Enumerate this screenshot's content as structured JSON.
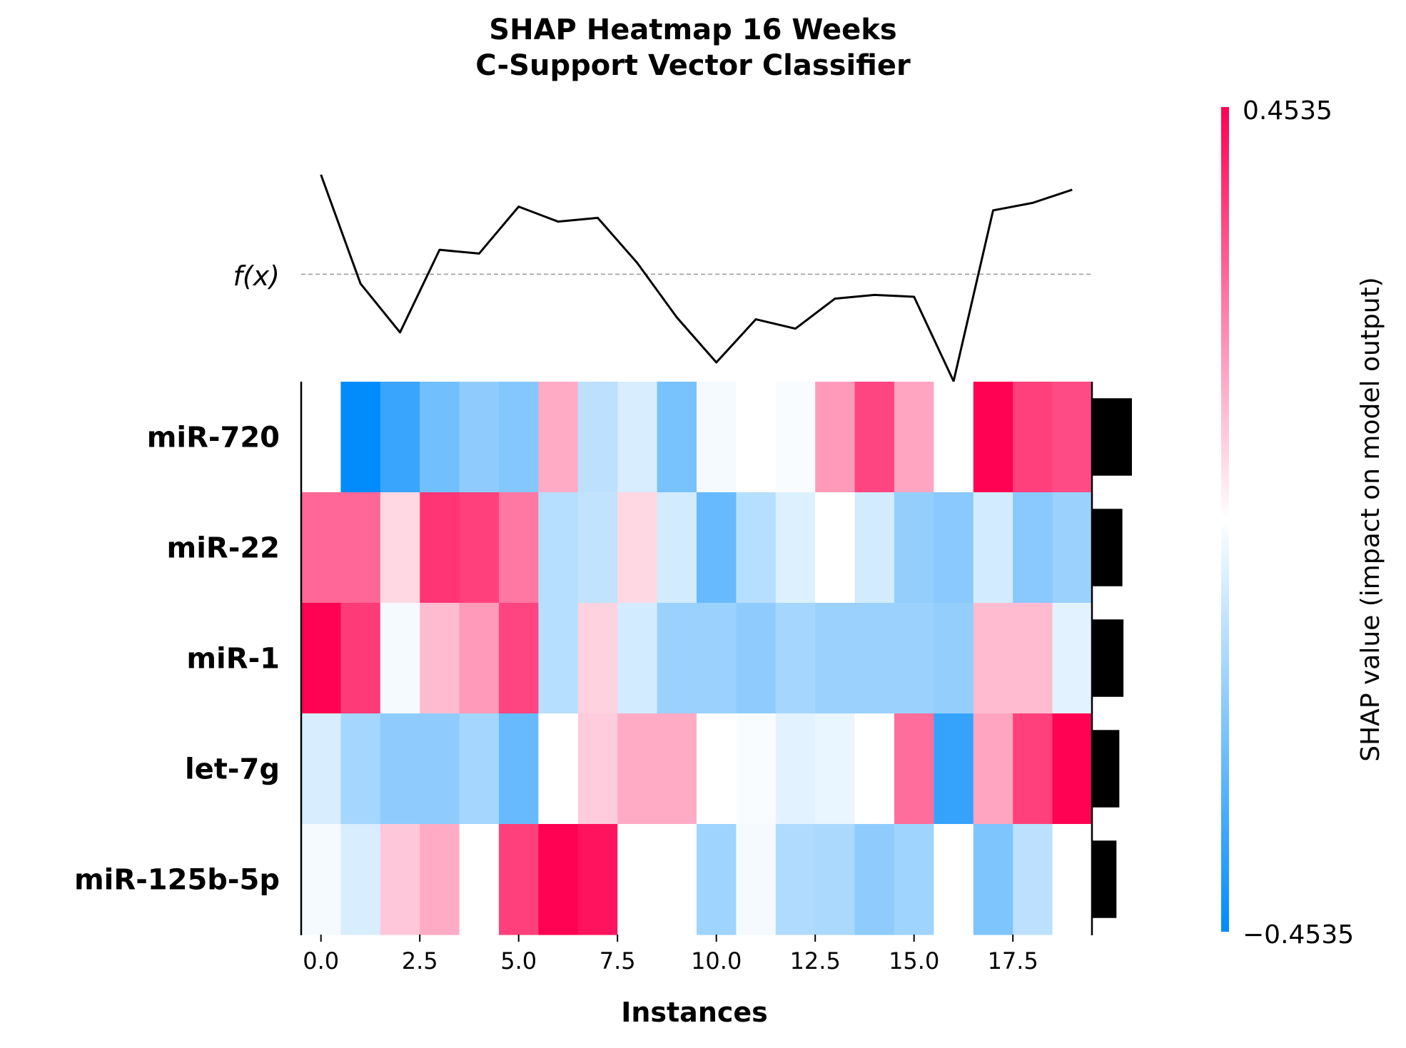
{
  "chart_data": {
    "type": "heatmap",
    "title": "SHAP Heatmap 16 Weeks\nC-Support Vector Classifier",
    "xlabel": "Instances",
    "fx_label": "f(x)",
    "features": [
      "miR-720",
      "miR-22",
      "miR-1",
      "let-7g",
      "miR-125b-5p"
    ],
    "instances": [
      0,
      1,
      2,
      3,
      4,
      5,
      6,
      7,
      8,
      9,
      10,
      11,
      12,
      13,
      14,
      15,
      16,
      17,
      18,
      19
    ],
    "x_ticks": [
      "0.0",
      "2.5",
      "5.0",
      "7.5",
      "10.0",
      "12.5",
      "15.0",
      "17.5"
    ],
    "x_tick_values": [
      0,
      2.5,
      5,
      7.5,
      10,
      12.5,
      15,
      17.5
    ],
    "xlim": [
      -0.5,
      19.5
    ],
    "shap_values": [
      [
        0.0,
        -0.45,
        -0.35,
        -0.25,
        -0.2,
        -0.22,
        0.15,
        -0.12,
        -0.07,
        -0.24,
        -0.02,
        0.0,
        -0.01,
        0.18,
        0.33,
        0.16,
        0.0,
        0.45,
        0.34,
        0.32
      ],
      [
        0.27,
        0.27,
        0.07,
        0.36,
        0.34,
        0.24,
        -0.13,
        -0.11,
        0.07,
        -0.08,
        -0.27,
        -0.13,
        -0.06,
        0.0,
        -0.08,
        -0.19,
        -0.21,
        -0.08,
        -0.21,
        -0.18
      ],
      [
        0.45,
        0.35,
        -0.02,
        0.12,
        0.18,
        0.33,
        -0.13,
        0.08,
        -0.08,
        -0.18,
        -0.18,
        -0.2,
        -0.16,
        -0.18,
        -0.18,
        -0.18,
        -0.19,
        0.12,
        0.12,
        -0.05
      ],
      [
        -0.07,
        -0.16,
        -0.2,
        -0.2,
        -0.16,
        -0.27,
        0.0,
        0.09,
        0.15,
        0.15,
        0.0,
        -0.01,
        -0.05,
        -0.04,
        0.0,
        0.26,
        -0.36,
        0.16,
        0.34,
        0.45
      ],
      [
        -0.02,
        -0.07,
        0.1,
        0.15,
        0.0,
        0.34,
        0.45,
        0.42,
        0.0,
        0.0,
        -0.17,
        -0.02,
        -0.14,
        -0.15,
        -0.2,
        -0.17,
        0.0,
        -0.23,
        -0.12,
        0.0
      ]
    ],
    "fx_values": [
      1.0,
      0.42,
      0.16,
      0.6,
      0.58,
      0.83,
      0.75,
      0.77,
      0.53,
      0.24,
      0.0,
      0.23,
      0.18,
      0.34,
      0.36,
      0.35,
      -0.1,
      0.81,
      0.85,
      0.92
    ],
    "fx_baseline": 0.47,
    "fx_range": [
      -0.11,
      1.03
    ],
    "feature_importance": [
      0.222,
      0.169,
      0.175,
      0.152,
      0.136
    ],
    "colorbar": {
      "max_label": "0.4535",
      "min_label": "−0.4535",
      "vmin": -0.4535,
      "vmax": 0.4535,
      "label": "SHAP value (impact on model output)",
      "low_color": "#008bfb",
      "mid_color": "#ffffff",
      "high_color": "#ff0052"
    },
    "line_color": "#000000",
    "baseline_color": "#999999",
    "bar_color": "#000000",
    "grid": false
  }
}
